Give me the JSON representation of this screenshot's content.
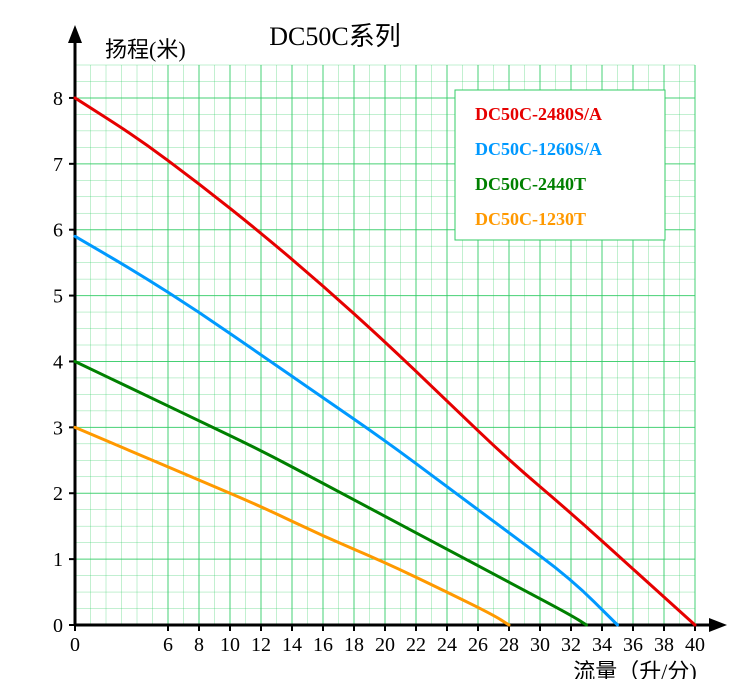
{
  "chart": {
    "type": "line",
    "title": "DC50C系列",
    "y_axis_label": "扬程(米)",
    "x_axis_label": "流量（升/分)",
    "background_color": "#ffffff",
    "grid_color": "#33cc66",
    "grid_minor_color": "#33cc66",
    "axis_color": "#000000",
    "axis_width": 3,
    "title_fontsize": 26,
    "axis_title_fontsize": 22,
    "tick_fontsize": 20,
    "legend_fontsize": 18,
    "line_width": 3,
    "x_ticks": [
      0,
      6,
      8,
      10,
      12,
      14,
      16,
      18,
      20,
      22,
      24,
      26,
      28,
      30,
      32,
      34,
      36,
      38,
      40
    ],
    "x_range": [
      0,
      40
    ],
    "y_ticks": [
      0,
      1,
      2,
      3,
      4,
      5,
      6,
      7,
      8
    ],
    "y_range": [
      0,
      8.5
    ],
    "legend_box": {
      "border_color": "#33cc66",
      "background": "#ffffff"
    },
    "series": [
      {
        "name": "DC50C-2480S/A",
        "color": "#e60000",
        "points": [
          [
            0,
            8.0
          ],
          [
            4,
            7.4
          ],
          [
            8,
            6.7
          ],
          [
            12,
            5.95
          ],
          [
            16,
            5.15
          ],
          [
            20,
            4.3
          ],
          [
            24,
            3.4
          ],
          [
            28,
            2.5
          ],
          [
            32,
            1.7
          ],
          [
            36,
            0.85
          ],
          [
            40,
            0.0
          ]
        ]
      },
      {
        "name": "DC50C-1260S/A",
        "color": "#0099ff",
        "points": [
          [
            0,
            5.9
          ],
          [
            4,
            5.35
          ],
          [
            8,
            4.75
          ],
          [
            12,
            4.1
          ],
          [
            16,
            3.45
          ],
          [
            20,
            2.8
          ],
          [
            24,
            2.1
          ],
          [
            28,
            1.4
          ],
          [
            32,
            0.7
          ],
          [
            35,
            0.0
          ]
        ]
      },
      {
        "name": "DC50C-2440T",
        "color": "#008000",
        "points": [
          [
            0,
            4.0
          ],
          [
            4,
            3.55
          ],
          [
            8,
            3.1
          ],
          [
            12,
            2.65
          ],
          [
            16,
            2.15
          ],
          [
            20,
            1.65
          ],
          [
            24,
            1.15
          ],
          [
            28,
            0.65
          ],
          [
            32,
            0.15
          ],
          [
            33,
            0.0
          ]
        ]
      },
      {
        "name": "DC50C-1230T",
        "color": "#ff9900",
        "points": [
          [
            0,
            3.0
          ],
          [
            4,
            2.6
          ],
          [
            8,
            2.2
          ],
          [
            12,
            1.8
          ],
          [
            16,
            1.35
          ],
          [
            20,
            0.95
          ],
          [
            24,
            0.5
          ],
          [
            27,
            0.15
          ],
          [
            28,
            0.0
          ]
        ]
      }
    ]
  }
}
